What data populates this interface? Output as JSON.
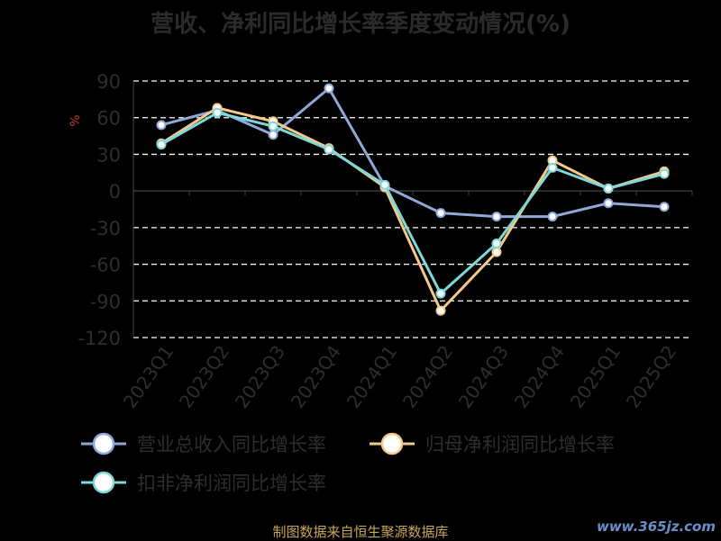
{
  "chart_data": {
    "type": "line",
    "title": "营收、净利同比增长率季度变动情况(%)",
    "ylabel": "%",
    "categories": [
      "2023Q1",
      "2023Q2",
      "2023Q3",
      "2023Q4",
      "2024Q1",
      "2024Q2",
      "2024Q3",
      "2024Q4",
      "2025Q1",
      "2025Q2"
    ],
    "ylim": [
      -120,
      90
    ],
    "yticks": [
      90,
      60,
      30,
      0,
      -30,
      -60,
      -90,
      -120
    ],
    "grid": true,
    "legend_position": "bottom",
    "series": [
      {
        "name": "营业总收入同比增长率",
        "color": "#8fa8d8",
        "values": [
          54,
          66,
          46,
          84,
          4,
          -18,
          -21,
          -21,
          -10,
          -13
        ]
      },
      {
        "name": "归母净利润同比增长率",
        "color": "#f5c98a",
        "values": [
          39,
          68,
          57,
          35,
          3,
          -98,
          -50,
          25,
          2,
          16
        ]
      },
      {
        "name": "扣非净利润同比增长率",
        "color": "#7fd8d8",
        "values": [
          38,
          64,
          53,
          34,
          5,
          -84,
          -43,
          19,
          2,
          14
        ]
      }
    ]
  },
  "source": "制图数据来自恒生聚源数据库",
  "watermark": "www.365jz.com"
}
